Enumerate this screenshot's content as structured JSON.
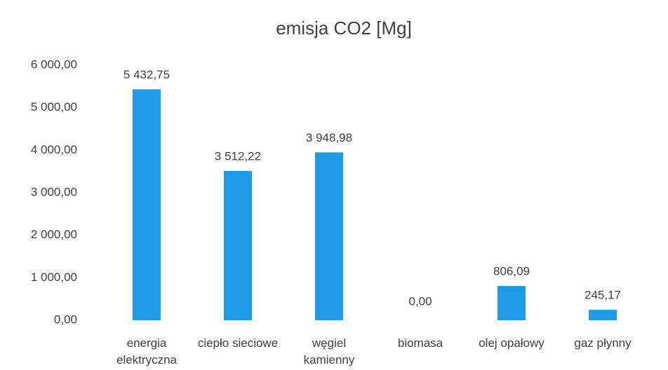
{
  "chart_data": {
    "type": "bar",
    "title": "emisja CO2 [Mg]",
    "categories": [
      "energia elektryczna",
      "ciepło sieciowe",
      "węgiel kamienny",
      "biomasa",
      "olej opałowy",
      "gaz płynny"
    ],
    "values": [
      5432.75,
      3512.22,
      3948.98,
      0,
      806.09,
      245.17
    ],
    "value_labels": [
      "5 432,75",
      "3 512,22",
      "3 948,98",
      "0,00",
      "806,09",
      "245,17"
    ],
    "color": "#1f9ae6",
    "ylim": [
      0,
      6000
    ],
    "yticks": [
      {
        "value": 0,
        "label": "0,00"
      },
      {
        "value": 1000,
        "label": "1 000,00"
      },
      {
        "value": 2000,
        "label": "2 000,00"
      },
      {
        "value": 3000,
        "label": "3 000,00"
      },
      {
        "value": 4000,
        "label": "4 000,00"
      },
      {
        "value": 5000,
        "label": "5 000,00"
      },
      {
        "value": 6000,
        "label": "6 000,00"
      }
    ],
    "grid": false
  }
}
